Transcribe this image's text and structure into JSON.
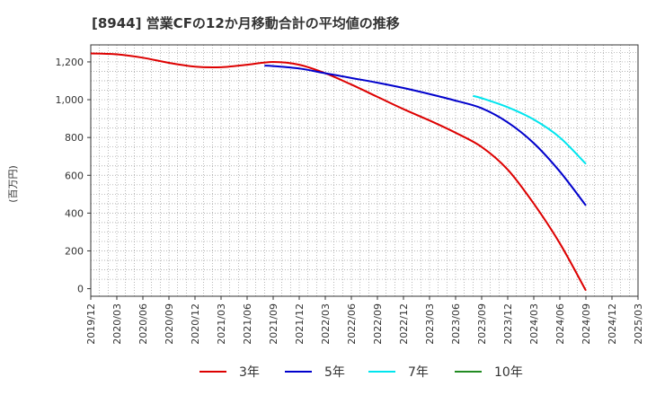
{
  "chart_data": {
    "type": "line",
    "title": "[8944]  営業CFの12か月移動合計の平均値の推移",
    "ylabel": "(百万円)",
    "xlabel": "",
    "x_ticks": [
      "2019/12",
      "2020/03",
      "2020/06",
      "2020/09",
      "2020/12",
      "2021/03",
      "2021/06",
      "2021/09",
      "2021/12",
      "2022/03",
      "2022/06",
      "2022/09",
      "2022/12",
      "2023/03",
      "2023/06",
      "2023/09",
      "2023/12",
      "2024/03",
      "2024/06",
      "2024/09",
      "2024/12",
      "2025/03"
    ],
    "y_ticks": [
      0,
      200,
      400,
      600,
      800,
      1000,
      1200
    ],
    "y_tick_labels": [
      "0",
      "200",
      "400",
      "600",
      "800",
      "1,000",
      "1,200"
    ],
    "ylim": [
      -40,
      1290
    ],
    "grid": true,
    "legend_position": "bottom",
    "series": [
      {
        "name": "3年",
        "color": "#dd0000",
        "x": [
          "2019/12",
          "2020/03",
          "2020/06",
          "2020/09",
          "2020/12",
          "2021/03",
          "2021/06",
          "2021/09",
          "2021/12",
          "2022/03",
          "2022/06",
          "2022/09",
          "2022/12",
          "2023/03",
          "2023/06",
          "2023/09",
          "2023/12",
          "2024/03",
          "2024/06",
          "2024/09"
        ],
        "values": [
          1245,
          1240,
          1222,
          1195,
          1175,
          1172,
          1185,
          1200,
          1185,
          1140,
          1080,
          1015,
          950,
          890,
          825,
          750,
          630,
          450,
          240,
          -10
        ]
      },
      {
        "name": "5年",
        "color": "#0000cc",
        "x": [
          "2021/08",
          "2021/09",
          "2021/12",
          "2022/03",
          "2022/06",
          "2022/09",
          "2022/12",
          "2023/03",
          "2023/06",
          "2023/09",
          "2023/12",
          "2024/03",
          "2024/06",
          "2024/09"
        ],
        "values": [
          1180,
          1178,
          1165,
          1140,
          1115,
          1090,
          1062,
          1030,
          995,
          955,
          880,
          770,
          620,
          440
        ]
      },
      {
        "name": "7年",
        "color": "#00e5ee",
        "x": [
          "2023/08",
          "2023/09",
          "2023/12",
          "2024/03",
          "2024/06",
          "2024/09"
        ],
        "values": [
          1020,
          1008,
          960,
          895,
          800,
          660
        ]
      },
      {
        "name": "10年",
        "color": "#228b22",
        "x": [],
        "values": []
      }
    ]
  }
}
